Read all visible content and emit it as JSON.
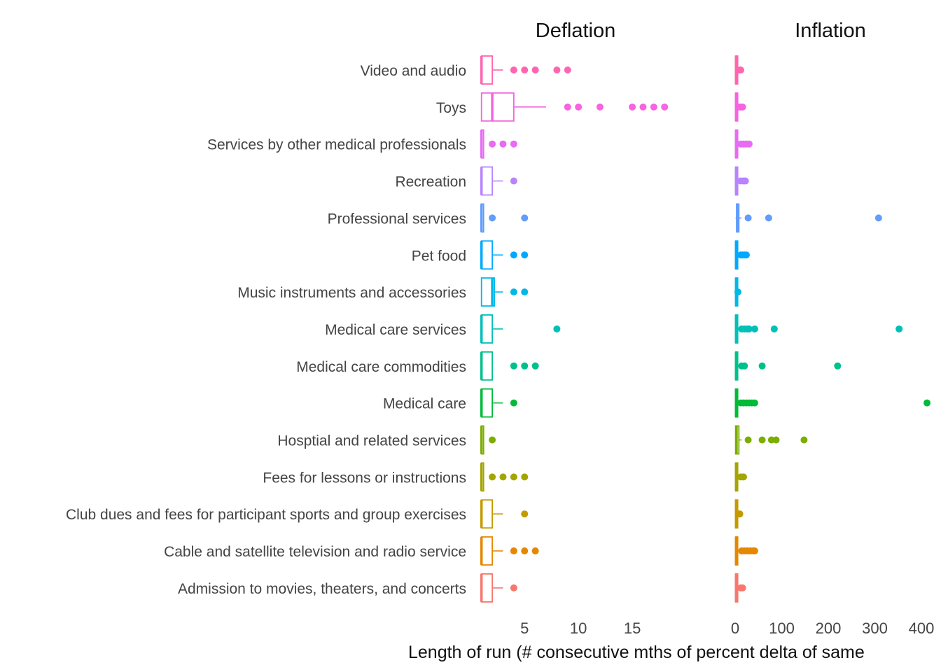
{
  "chart_data": {
    "type": "boxplot",
    "xlabel": "Length of run (# consecutive mths of percent delta of same",
    "ylabel": "",
    "grid": false,
    "legend": "none",
    "categories": [
      "Video and audio",
      "Toys",
      "Services by other medical professionals",
      "Recreation",
      "Professional services",
      "Pet food",
      "Music instruments and accessories",
      "Medical care services",
      "Medical care commodities",
      "Medical care",
      "Hosptial and related services",
      "Fees for lessons or instructions",
      "Club dues and fees for participant sports and group exercises",
      "Cable and satellite television and radio service",
      "Admission to movies, theaters, and concerts"
    ],
    "colors": [
      "#FF65AE",
      "#F763E0",
      "#E76BF3",
      "#B983FF",
      "#619CFF",
      "#00A9FF",
      "#00B8E7",
      "#00C0B8",
      "#00C08B",
      "#00BA38",
      "#7CAE00",
      "#A3A500",
      "#C49A00",
      "#E58700",
      "#F8766D"
    ],
    "panels": [
      {
        "title": "Deflation",
        "xlim": [
          0.5,
          20
        ],
        "xticks": [
          5,
          10,
          15
        ],
        "boxes": [
          {
            "q1": 1,
            "median": 1,
            "q3": 2,
            "whisker_low": 1,
            "whisker_high": 3,
            "outliers": [
              4,
              5,
              6,
              8,
              9
            ]
          },
          {
            "q1": 1,
            "median": 2,
            "q3": 4,
            "whisker_low": 1,
            "whisker_high": 7,
            "outliers": [
              9,
              10,
              12,
              15,
              16,
              17,
              18
            ]
          },
          {
            "q1": 1,
            "median": 1,
            "q3": 1,
            "whisker_low": 1,
            "whisker_high": 1,
            "outliers": [
              2,
              3,
              4
            ]
          },
          {
            "q1": 1,
            "median": 1,
            "q3": 2,
            "whisker_low": 1,
            "whisker_high": 3,
            "outliers": [
              4
            ]
          },
          {
            "q1": 1,
            "median": 1,
            "q3": 1,
            "whisker_low": 1,
            "whisker_high": 1,
            "outliers": [
              2,
              5
            ]
          },
          {
            "q1": 1,
            "median": 1,
            "q3": 2,
            "whisker_low": 1,
            "whisker_high": 3,
            "outliers": [
              4,
              5
            ]
          },
          {
            "q1": 1,
            "median": 2,
            "q3": 2.2,
            "whisker_low": 1,
            "whisker_high": 3,
            "outliers": [
              4,
              5
            ]
          },
          {
            "q1": 1,
            "median": 1,
            "q3": 2,
            "whisker_low": 1,
            "whisker_high": 3,
            "outliers": [
              8
            ]
          },
          {
            "q1": 1,
            "median": 1,
            "q3": 2,
            "whisker_low": 1,
            "whisker_high": 2,
            "outliers": [
              4,
              5,
              6
            ]
          },
          {
            "q1": 1,
            "median": 1,
            "q3": 2,
            "whisker_low": 1,
            "whisker_high": 3,
            "outliers": [
              4
            ]
          },
          {
            "q1": 1,
            "median": 1,
            "q3": 1,
            "whisker_low": 1,
            "whisker_high": 1,
            "outliers": [
              2
            ]
          },
          {
            "q1": 1,
            "median": 1,
            "q3": 1,
            "whisker_low": 1,
            "whisker_high": 1,
            "outliers": [
              2,
              3,
              4,
              5
            ]
          },
          {
            "q1": 1,
            "median": 1,
            "q3": 2,
            "whisker_low": 1,
            "whisker_high": 3,
            "outliers": [
              5
            ]
          },
          {
            "q1": 1,
            "median": 1,
            "q3": 2,
            "whisker_low": 1,
            "whisker_high": 3,
            "outliers": [
              4,
              5,
              6
            ]
          },
          {
            "q1": 1,
            "median": 1,
            "q3": 2,
            "whisker_low": 1,
            "whisker_high": 3,
            "outliers": [
              4
            ]
          }
        ]
      },
      {
        "title": "Inflation",
        "xlim": [
          -15,
          430
        ],
        "xticks": [
          0,
          100,
          200,
          300,
          400
        ],
        "boxes": [
          {
            "q1": 1,
            "median": 2,
            "q3": 4,
            "whisker_low": 1,
            "whisker_high": 8,
            "outliers": [
              10,
              12
            ]
          },
          {
            "q1": 1,
            "median": 2,
            "q3": 4,
            "whisker_low": 1,
            "whisker_high": 8,
            "outliers": [
              10,
              14,
              16
            ]
          },
          {
            "q1": 1,
            "median": 2,
            "q3": 4,
            "whisker_low": 1,
            "whisker_high": 8,
            "outliers": [
              12,
              18,
              24,
              30
            ]
          },
          {
            "q1": 1,
            "median": 2,
            "q3": 4,
            "whisker_low": 1,
            "whisker_high": 8,
            "outliers": [
              12,
              18,
              22
            ]
          },
          {
            "q1": 3,
            "median": 5,
            "q3": 8,
            "whisker_low": 1,
            "whisker_high": 14,
            "outliers": [
              28,
              72,
              308
            ]
          },
          {
            "q1": 1,
            "median": 2,
            "q3": 4,
            "whisker_low": 1,
            "whisker_high": 8,
            "outliers": [
              12,
              16,
              20,
              24
            ]
          },
          {
            "q1": 1,
            "median": 2,
            "q3": 3,
            "whisker_low": 1,
            "whisker_high": 5,
            "outliers": [
              6
            ]
          },
          {
            "q1": 1,
            "median": 2,
            "q3": 4,
            "whisker_low": 1,
            "whisker_high": 8,
            "outliers": [
              14,
              20,
              26,
              30,
              42,
              84,
              352
            ]
          },
          {
            "q1": 1,
            "median": 2,
            "q3": 4,
            "whisker_low": 1,
            "whisker_high": 8,
            "outliers": [
              14,
              20,
              58,
              220
            ]
          },
          {
            "q1": 1,
            "median": 2,
            "q3": 4,
            "whisker_low": 1,
            "whisker_high": 8,
            "outliers": [
              12,
              18,
              24,
              30,
              36,
              42,
              412
            ]
          },
          {
            "q1": 1,
            "median": 3,
            "q3": 8,
            "whisker_low": 1,
            "whisker_high": 14,
            "outliers": [
              28,
              58,
              78,
              88,
              148
            ]
          },
          {
            "q1": 1,
            "median": 2,
            "q3": 4,
            "whisker_low": 1,
            "whisker_high": 8,
            "outliers": [
              12,
              18
            ]
          },
          {
            "q1": 1,
            "median": 2,
            "q3": 3,
            "whisker_low": 1,
            "whisker_high": 5,
            "outliers": [
              8,
              10
            ]
          },
          {
            "q1": 1,
            "median": 2,
            "q3": 4,
            "whisker_low": 1,
            "whisker_high": 8,
            "outliers": [
              14,
              20,
              26,
              32,
              38,
              42
            ]
          },
          {
            "q1": 1,
            "median": 2,
            "q3": 4,
            "whisker_low": 1,
            "whisker_high": 8,
            "outliers": [
              12,
              16
            ]
          }
        ]
      }
    ]
  }
}
